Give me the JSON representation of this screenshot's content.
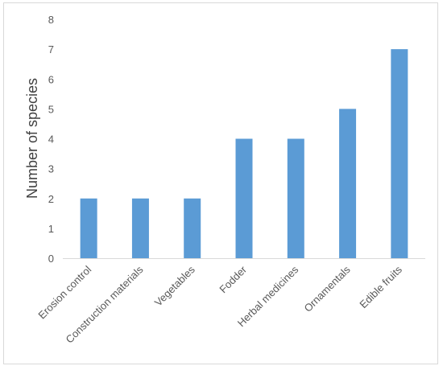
{
  "chart_data": {
    "type": "bar",
    "categories": [
      "Erosion control",
      "Construction materials",
      "Vegetables",
      "Fodder",
      "Herbal medicines",
      "Ornamentals",
      "Edible fruits"
    ],
    "values": [
      2,
      2,
      2,
      4,
      4,
      5,
      7
    ],
    "title": "",
    "xlabel": "",
    "ylabel": "Number of species",
    "ylim": [
      0,
      8
    ],
    "yticks": [
      0,
      1,
      2,
      3,
      4,
      5,
      6,
      7,
      8
    ],
    "grid": false,
    "legend": "none",
    "bar_color": "#5b9bd5",
    "axis_color": "#d9d9d9"
  }
}
